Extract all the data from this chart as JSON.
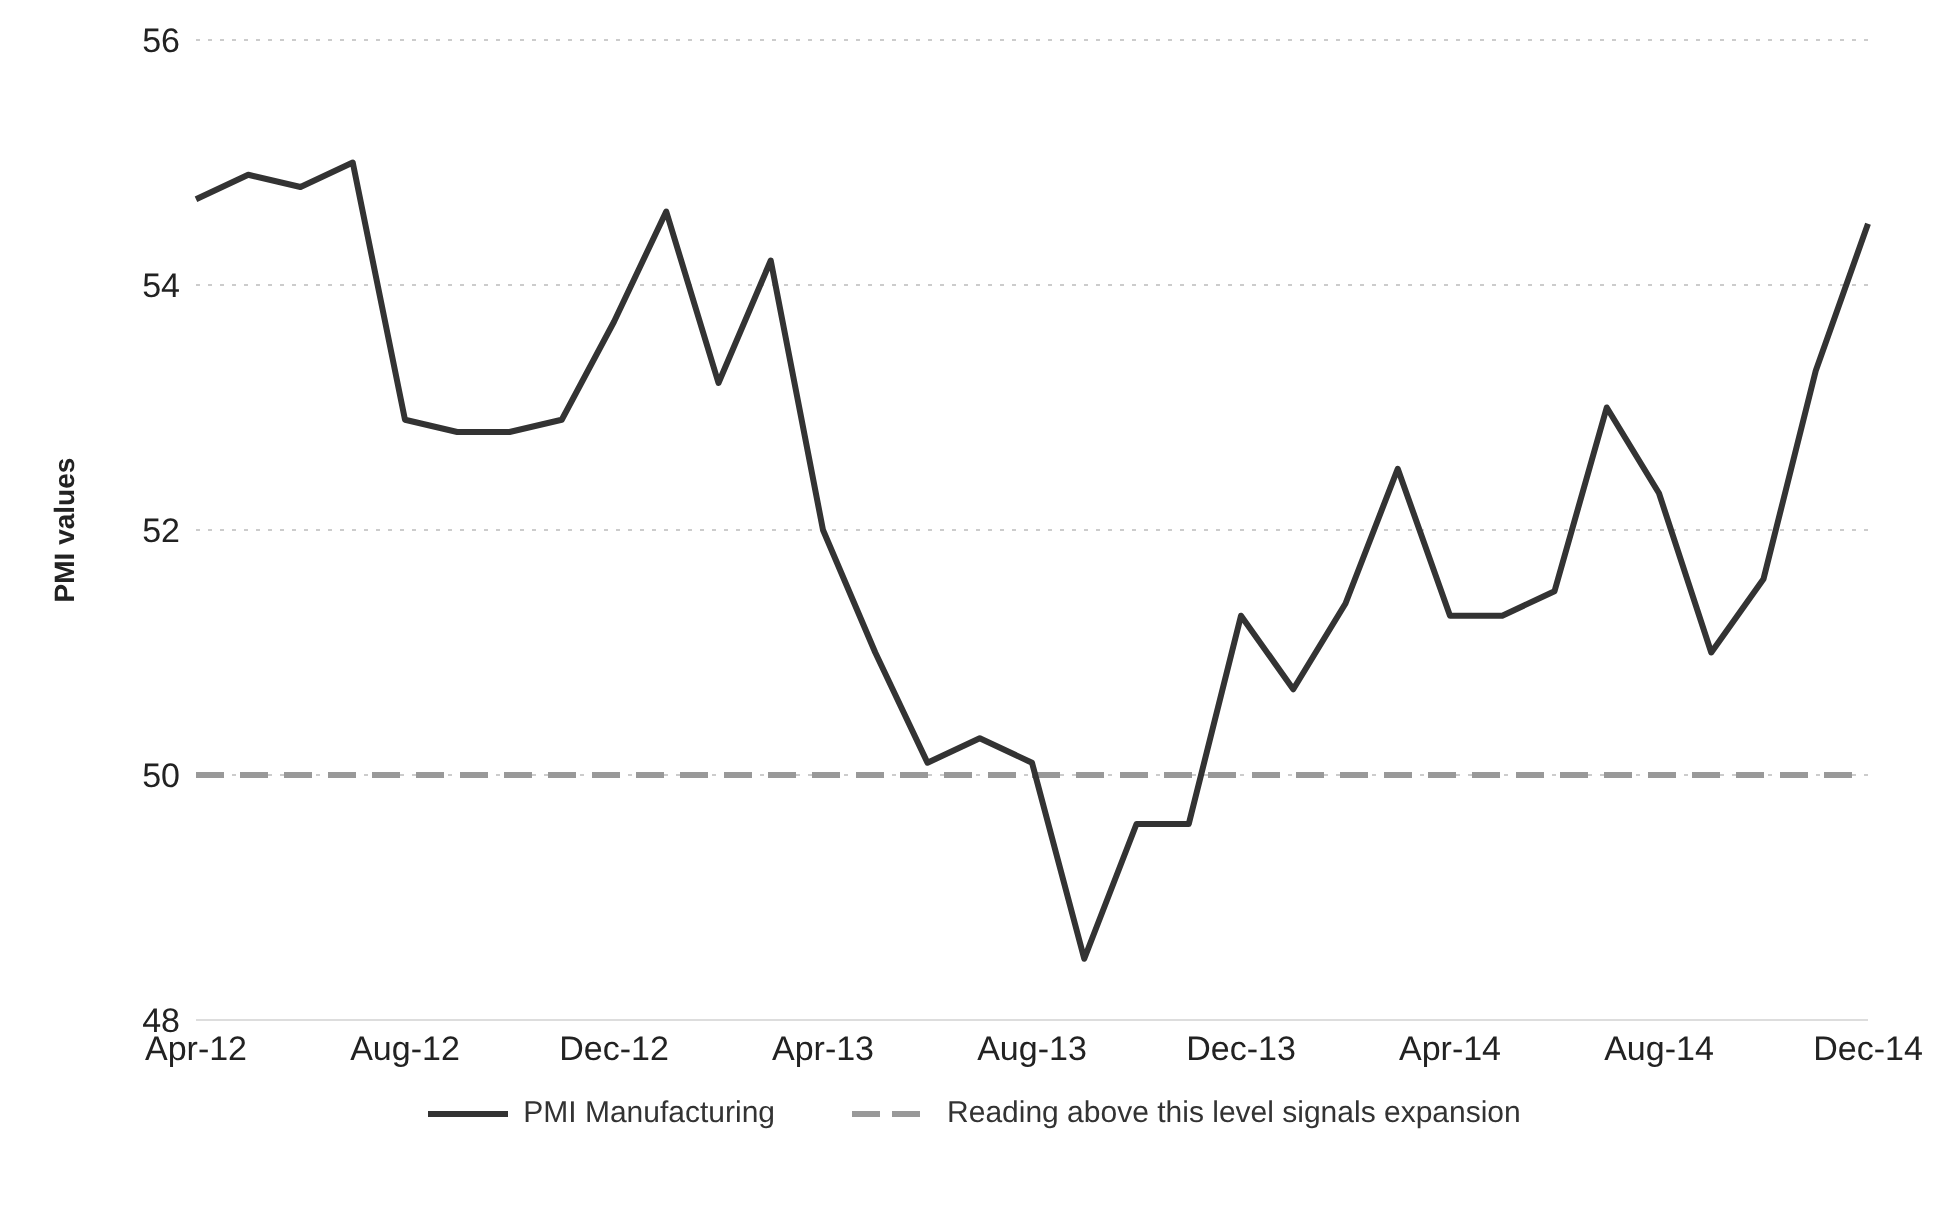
{
  "chart_data": {
    "type": "line",
    "ylabel": "PMI values",
    "categories": [
      "Apr-12",
      null,
      null,
      null,
      "Aug-12",
      null,
      null,
      null,
      "Dec-12",
      null,
      null,
      null,
      "Apr-13",
      null,
      null,
      null,
      "Aug-13",
      null,
      null,
      null,
      "Dec-13",
      null,
      null,
      null,
      "Apr-14",
      null,
      null,
      null,
      "Aug-14",
      null,
      null,
      null,
      "Dec-14"
    ],
    "series": [
      {
        "name": "PMI Manufacturing",
        "color": "#333333",
        "values": [
          54.7,
          54.9,
          54.8,
          55.0,
          52.9,
          52.8,
          52.8,
          52.9,
          53.7,
          54.6,
          53.2,
          54.2,
          52.0,
          51.0,
          50.1,
          50.3,
          50.1,
          48.5,
          49.6,
          49.6,
          51.3,
          50.7,
          51.4,
          52.5,
          51.3,
          51.3,
          51.5,
          53.0,
          52.3,
          51.0,
          51.6,
          53.3,
          54.5
        ]
      }
    ],
    "ref_lines": [
      {
        "axis": "y",
        "value": 50,
        "label": "Reading above this level signals expansion",
        "color": "#999999",
        "line_style": "dashed"
      }
    ],
    "ylim": [
      48,
      56
    ],
    "yticks": [
      48,
      50,
      52,
      54,
      56
    ],
    "grid": "y",
    "legend": "bottom",
    "marker": "none",
    "line_style": "solid"
  }
}
